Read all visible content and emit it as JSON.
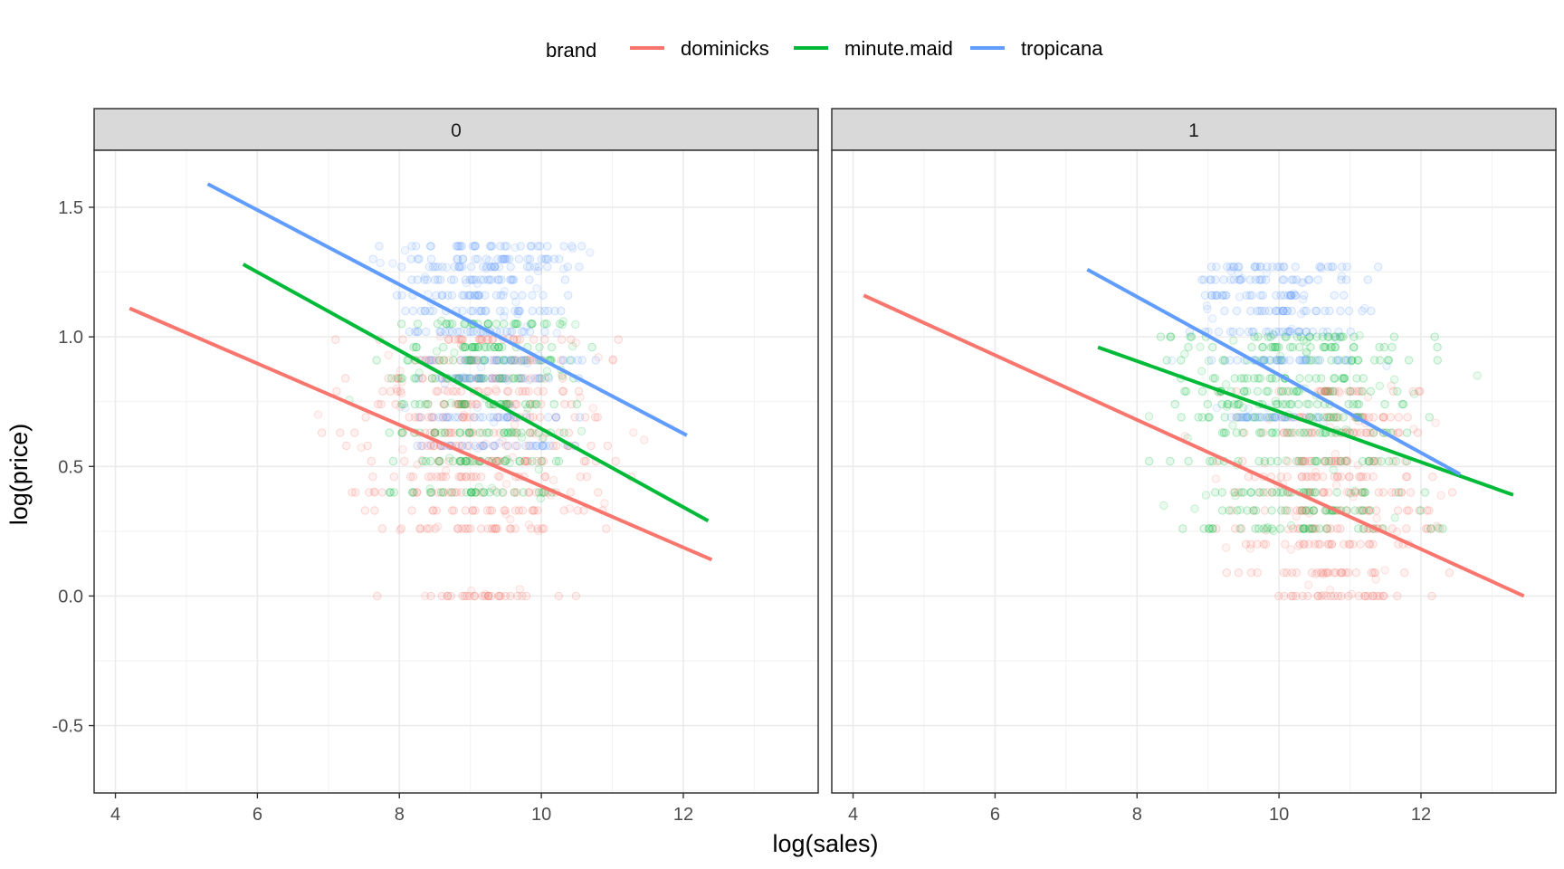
{
  "chart_data": {
    "type": "scatter",
    "xlabel": "log(sales)",
    "ylabel": "log(price)",
    "xlim": [
      3.7,
      13.9
    ],
    "ylim": [
      -0.76,
      1.72
    ],
    "x_ticks": [
      4,
      6,
      8,
      10,
      12
    ],
    "y_ticks": [
      -0.5,
      0.0,
      0.5,
      1.0,
      1.5
    ],
    "x_tick_labels": [
      "4",
      "6",
      "8",
      "10",
      "12"
    ],
    "y_tick_labels": [
      "-0.5",
      "0.0",
      "0.5",
      "1.0",
      "1.5"
    ],
    "grid": true,
    "legend": {
      "title": "brand",
      "placement": "top",
      "entries": [
        {
          "name": "dominicks",
          "color": "#F8766D"
        },
        {
          "name": "minute.maid",
          "color": "#00BA38"
        },
        {
          "name": "tropicana",
          "color": "#619CFF"
        }
      ]
    },
    "panels": [
      {
        "strip": "0",
        "lines": [
          {
            "brand": "dominicks",
            "x": [
              4.2,
              12.4
            ],
            "y": [
              1.11,
              0.14
            ]
          },
          {
            "brand": "minute.maid",
            "x": [
              5.8,
              12.35
            ],
            "y": [
              1.28,
              0.29
            ]
          },
          {
            "brand": "tropicana",
            "x": [
              5.3,
              12.05
            ],
            "y": [
              1.59,
              0.62
            ]
          }
        ],
        "point_bands": [
          {
            "brand": "dominicks",
            "price_levels": [
              0.0,
              0.26,
              0.33,
              0.4,
              0.46,
              0.52,
              0.58,
              0.63,
              0.69,
              0.74,
              0.79,
              0.84,
              0.91,
              0.99
            ],
            "x_range": [
              7.0,
              11.3
            ]
          },
          {
            "brand": "minute.maid",
            "price_levels": [
              0.4,
              0.52,
              0.63,
              0.74,
              0.84,
              0.91,
              0.96,
              1.05
            ],
            "x_range": [
              7.5,
              10.8
            ]
          },
          {
            "brand": "tropicana",
            "price_levels": [
              0.58,
              0.69,
              0.84,
              0.91,
              1.02,
              1.1,
              1.16,
              1.22,
              1.27,
              1.3,
              1.35
            ],
            "x_range": [
              7.5,
              10.9
            ]
          }
        ]
      },
      {
        "strip": "1",
        "lines": [
          {
            "brand": "dominicks",
            "x": [
              4.15,
              13.45
            ],
            "y": [
              1.16,
              0.0
            ]
          },
          {
            "brand": "minute.maid",
            "x": [
              7.45,
              13.3
            ],
            "y": [
              0.96,
              0.39
            ]
          },
          {
            "brand": "tropicana",
            "x": [
              7.3,
              12.55
            ],
            "y": [
              1.26,
              0.47
            ]
          }
        ],
        "point_bands": [
          {
            "brand": "dominicks",
            "price_levels": [
              0.0,
              0.09,
              0.2,
              0.26,
              0.33,
              0.4,
              0.46,
              0.52,
              0.63,
              0.69,
              0.79
            ],
            "x_range": [
              9.0,
              12.6
            ]
          },
          {
            "brand": "minute.maid",
            "price_levels": [
              0.26,
              0.33,
              0.4,
              0.52,
              0.63,
              0.69,
              0.74,
              0.79,
              0.84,
              0.91,
              0.96,
              1.0
            ],
            "x_range": [
              8.0,
              12.5
            ]
          },
          {
            "brand": "tropicana",
            "price_levels": [
              0.69,
              0.91,
              1.02,
              1.1,
              1.16,
              1.22,
              1.27
            ],
            "x_range": [
              8.5,
              11.5
            ]
          }
        ]
      }
    ]
  }
}
